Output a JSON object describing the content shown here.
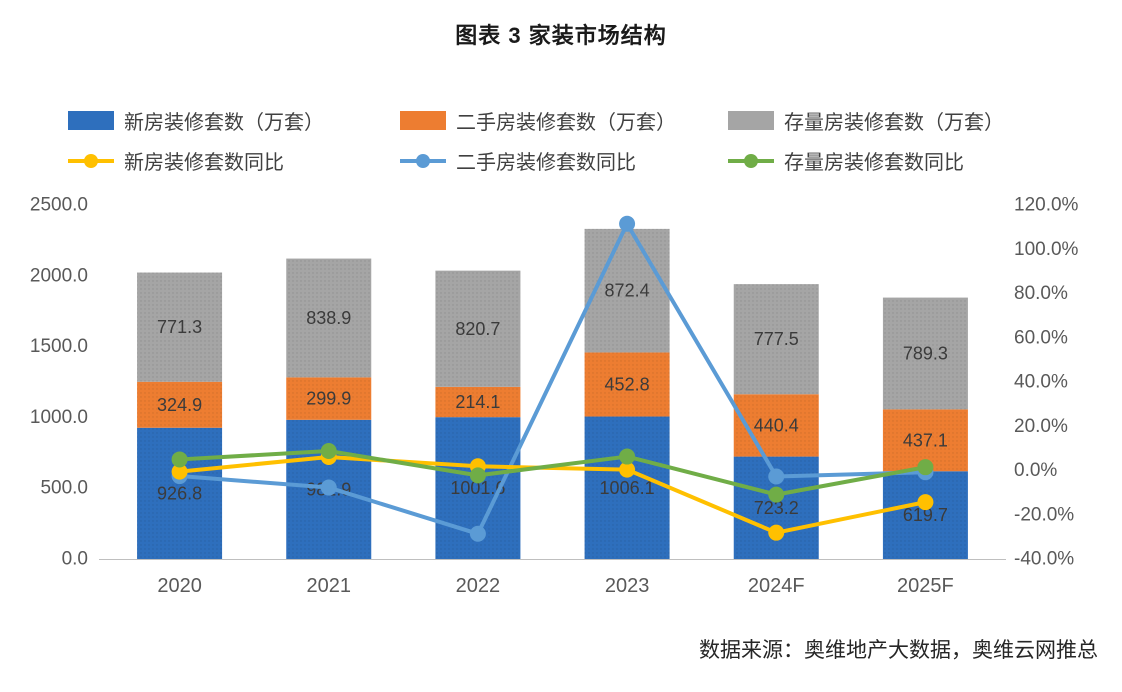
{
  "title": "图表 3  家装市场结构",
  "source": "数据来源：奥维地产大数据，奥维云网推总",
  "colors": {
    "new_bar": "#2e6fbd",
    "old_bar": "#ed7d31",
    "stock_bar": "#a5a5a5",
    "new_line": "#ffc000",
    "old_line": "#5b9bd5",
    "stock_line": "#70ad47"
  },
  "chart_data": {
    "type": "bar",
    "subtype": "stacked-bar-with-yoy-lines",
    "title": "图表 3  家装市场结构",
    "categories": [
      "2020",
      "2021",
      "2022",
      "2023",
      "2024F",
      "2025F"
    ],
    "bar_series": [
      {
        "name": "新房装修套数（万套）",
        "color_key": "new_bar",
        "values": [
          926.8,
          982.9,
          1001.6,
          1006.1,
          723.2,
          619.7
        ]
      },
      {
        "name": "二手房装修套数（万套）",
        "color_key": "old_bar",
        "values": [
          324.9,
          299.9,
          214.1,
          452.8,
          440.4,
          437.1
        ]
      },
      {
        "name": "存量房装修套数（万套）",
        "color_key": "stock_bar",
        "values": [
          771.3,
          838.9,
          820.7,
          872.4,
          777.5,
          789.3
        ]
      }
    ],
    "line_series": [
      {
        "name": "新房装修套数同比",
        "color_key": "new_line",
        "values_pct": [
          -0.5,
          6.1,
          1.9,
          0.4,
          -28.1,
          -14.3
        ]
      },
      {
        "name": "二手房装修套数同比",
        "color_key": "old_line",
        "values_pct": [
          -2.5,
          -7.7,
          -28.6,
          111.5,
          -2.7,
          -0.8
        ]
      },
      {
        "name": "存量房装修套数同比",
        "color_key": "stock_line",
        "values_pct": [
          5.0,
          8.8,
          -2.2,
          6.3,
          -10.9,
          1.5
        ]
      }
    ],
    "left_axis": {
      "min": 0,
      "max": 2500,
      "ticks": [
        "2500.0",
        "2000.0",
        "1500.0",
        "1000.0",
        "500.0",
        "0.0"
      ]
    },
    "right_axis": {
      "min": -40,
      "max": 120,
      "ticks": [
        "120.0%",
        "100.0%",
        "80.0%",
        "60.0%",
        "40.0%",
        "20.0%",
        "0.0%",
        "-20.0%",
        "-40.0%"
      ]
    },
    "grid": false,
    "legend_position": "top"
  }
}
